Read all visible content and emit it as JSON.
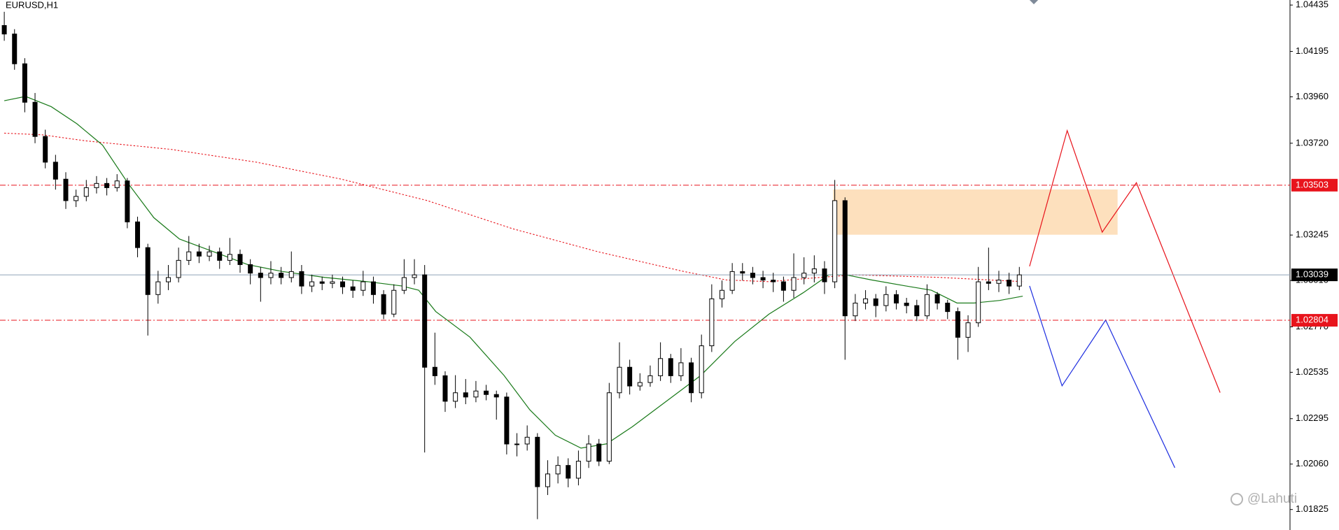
{
  "chart_data": {
    "type": "candlestick",
    "title": "EURUSD,H1",
    "watermark": "@Lahuti",
    "ylim": [
      1.01719,
      1.04461
    ],
    "yticks": [
      1.04435,
      1.04195,
      {
        "value": 1.0396,
        "label": "1.03960"
      },
      {
        "value": 1.0372,
        "label": "1.03720"
      },
      1.03245,
      {
        "value": 1.0301,
        "label": "1.03010"
      },
      {
        "value": 1.0277,
        "label": "1.02770"
      },
      1.02535,
      1.02295,
      {
        "value": 1.0206,
        "label": "1.02060"
      },
      1.01825
    ],
    "up_color": "#ffffff",
    "down_color": "#000000",
    "levels": [
      {
        "value": 1.03503,
        "color": "#e8141c",
        "style": "dashdot"
      },
      {
        "value": 1.03039,
        "color": "#000000",
        "style": "solid"
      },
      {
        "value": 1.02804,
        "color": "#e8141c",
        "style": "dashdot"
      }
    ],
    "open": [
      1.04329,
      1.04285,
      1.04131,
      1.03932,
      1.03755,
      1.03622,
      1.03534,
      1.03423,
      1.03445,
      1.0349,
      1.03512,
      1.0349,
      1.03525,
      1.03313,
      1.0318,
      1.02937,
      1.03003,
      1.03025,
      1.03114,
      1.03158,
      1.03136,
      1.03158,
      1.03114,
      1.03145,
      1.03092,
      1.03048,
      1.03025,
      1.03048,
      1.03025,
      1.03056,
      1.02981,
      1.03003,
      1.02995,
      1.03003,
      1.02977,
      1.02959,
      1.03003,
      1.02937,
      1.02836,
      1.02959,
      1.03025,
      1.03039,
      1.02561,
      1.02517,
      1.02385,
      1.02429,
      1.02407,
      1.02438,
      1.0242,
      1.02407,
      1.02164,
      1.02164,
      1.02199,
      1.01943,
      1.02009,
      1.02053,
      1.01987,
      1.02075,
      1.02164,
      1.02075,
      1.02429,
      1.02561,
      1.02464,
      1.02482,
      1.02517,
      1.02606,
      1.02517,
      1.02584,
      1.02429,
      1.02672,
      1.02915,
      1.02959,
      1.03056,
      1.03048,
      1.03025,
      1.03012,
      1.03003,
      1.02959,
      1.03025,
      1.03048,
      1.0307,
      1.03003,
      1.03423,
      1.02827,
      1.02893,
      1.02915,
      1.0288,
      1.02937,
      1.02893,
      1.0288,
      1.02827,
      1.02937,
      1.02893,
      1.02849,
      1.02716,
      1.02791,
      1.03003,
      1.02995,
      1.03012,
      1.02981
    ],
    "high": [
      1.044,
      1.0431,
      1.0416,
      1.0398,
      1.0379,
      1.0366,
      1.0357,
      1.0348,
      1.0353,
      1.0355,
      1.0354,
      1.0356,
      1.0354,
      1.0334,
      1.032,
      1.0306,
      1.0309,
      1.0318,
      1.0324,
      1.032,
      1.0319,
      1.0318,
      1.0323,
      1.0317,
      1.0312,
      1.0308,
      1.0311,
      1.0308,
      1.0316,
      1.0309,
      1.0304,
      1.0303,
      1.0304,
      1.0303,
      1.0301,
      1.0306,
      1.0303,
      1.0296,
      1.0299,
      1.0312,
      1.0312,
      1.0309,
      1.0274,
      1.0254,
      1.0252,
      1.025,
      1.0249,
      1.0247,
      1.0244,
      1.0243,
      1.0222,
      1.0226,
      1.0222,
      1.0208,
      1.021,
      1.0209,
      1.0213,
      1.0221,
      1.0219,
      1.0248,
      1.0269,
      1.026,
      1.0253,
      1.0257,
      1.0269,
      1.0263,
      1.0266,
      1.0261,
      1.0273,
      1.0299,
      1.0301,
      1.031,
      1.031,
      1.0308,
      1.0306,
      1.0305,
      1.0303,
      1.0315,
      1.0313,
      1.0314,
      1.0311,
      1.0353,
      1.0344,
      1.0294,
      1.0296,
      1.0294,
      1.0298,
      1.0296,
      1.0292,
      1.0291,
      1.0299,
      1.0295,
      1.0291,
      1.0287,
      1.0283,
      1.0308,
      1.0318,
      1.0306,
      1.0305,
      1.0308
    ],
    "low": [
      1.0425,
      1.041,
      1.0388,
      1.0372,
      1.0359,
      1.0348,
      1.0338,
      1.0339,
      1.0342,
      1.0346,
      1.0345,
      1.0347,
      1.0328,
      1.0313,
      1.02725,
      1.0289,
      1.0296,
      1.03,
      1.0309,
      1.031,
      1.0311,
      1.0307,
      1.0309,
      1.0305,
      1.0299,
      1.029,
      1.0299,
      1.0299,
      1.03,
      1.0294,
      1.0295,
      1.0296,
      1.0297,
      1.0294,
      1.0292,
      1.0293,
      1.0289,
      1.0281,
      1.0282,
      1.0294,
      1.0299,
      1.0212,
      1.0247,
      1.0233,
      1.0235,
      1.0237,
      1.0238,
      1.0239,
      1.0229,
      1.0211,
      1.021,
      1.0213,
      1.01775,
      1.019,
      1.0196,
      1.0194,
      1.0195,
      1.0204,
      1.0205,
      1.0206,
      1.024,
      1.0242,
      1.0244,
      1.0246,
      1.0249,
      1.0248,
      1.0249,
      1.0238,
      1.024,
      1.0264,
      1.0287,
      1.0294,
      1.0301,
      1.0299,
      1.0297,
      1.0295,
      1.029,
      1.0292,
      1.0299,
      1.03,
      1.0294,
      1.0297,
      1.026,
      1.028,
      1.0286,
      1.0282,
      1.0285,
      1.0286,
      1.0284,
      1.028,
      1.0281,
      1.0286,
      1.0281,
      1.026,
      1.0264,
      1.0277,
      1.0296,
      1.0295,
      1.0294,
      1.0296
    ],
    "close": [
      1.04285,
      1.04131,
      1.03932,
      1.03755,
      1.03622,
      1.03534,
      1.03423,
      1.03445,
      1.0349,
      1.03512,
      1.0349,
      1.03525,
      1.03313,
      1.0318,
      1.02937,
      1.03003,
      1.03025,
      1.03114,
      1.03158,
      1.03136,
      1.03158,
      1.03114,
      1.03145,
      1.03092,
      1.03048,
      1.03025,
      1.03048,
      1.03025,
      1.03056,
      1.02981,
      1.03003,
      1.02995,
      1.03003,
      1.02977,
      1.02959,
      1.03003,
      1.02937,
      1.02836,
      1.02959,
      1.03025,
      1.03039,
      1.02561,
      1.02517,
      1.02385,
      1.02429,
      1.02407,
      1.02438,
      1.0242,
      1.02407,
      1.02164,
      1.02164,
      1.02199,
      1.01943,
      1.02009,
      1.02053,
      1.01987,
      1.02075,
      1.02164,
      1.02075,
      1.02429,
      1.02561,
      1.02464,
      1.02482,
      1.02517,
      1.02606,
      1.02517,
      1.02584,
      1.02429,
      1.02672,
      1.02915,
      1.02959,
      1.03056,
      1.03048,
      1.03025,
      1.03012,
      1.03003,
      1.02959,
      1.03025,
      1.03048,
      1.0307,
      1.03003,
      1.03423,
      1.02827,
      1.02893,
      1.02915,
      1.0288,
      1.02937,
      1.02893,
      1.0288,
      1.02827,
      1.02937,
      1.02893,
      1.02849,
      1.02716,
      1.02791,
      1.03003,
      1.02995,
      1.03012,
      1.02981,
      1.03039
    ]
  }
}
